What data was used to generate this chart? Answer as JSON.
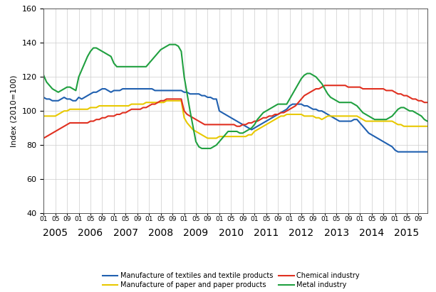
{
  "title": "",
  "ylabel": "Index (2010=100)",
  "ylim": [
    40,
    160
  ],
  "yticks": [
    40,
    60,
    80,
    100,
    120,
    140,
    160
  ],
  "background_color": "#ffffff",
  "grid_color": "#cccccc",
  "line_width": 1.5,
  "colors": {
    "textiles": "#2060b0",
    "paper": "#e8c800",
    "chemical": "#e03020",
    "metal": "#20a040"
  },
  "legend_labels": {
    "textiles": "Manufacture of textiles and textile products",
    "paper": "Manufacture of paper and paper products",
    "chemical": "Chemical industry",
    "metal": "Metal industry"
  },
  "start_year": 2005,
  "start_month": 1,
  "n_months": 132,
  "textiles": [
    108,
    107,
    107,
    106,
    106,
    106,
    107,
    108,
    107,
    107,
    106,
    106,
    108,
    107,
    108,
    109,
    110,
    111,
    111,
    112,
    113,
    113,
    112,
    111,
    112,
    112,
    112,
    113,
    113,
    113,
    113,
    113,
    113,
    113,
    113,
    113,
    113,
    113,
    112,
    112,
    112,
    112,
    112,
    112,
    112,
    112,
    112,
    112,
    111,
    111,
    110,
    110,
    110,
    110,
    109,
    109,
    108,
    108,
    107,
    107,
    100,
    99,
    98,
    97,
    96,
    95,
    94,
    93,
    92,
    91,
    90,
    89,
    90,
    91,
    92,
    93,
    94,
    95,
    96,
    97,
    98,
    99,
    100,
    101,
    103,
    104,
    104,
    104,
    104,
    103,
    103,
    102,
    101,
    101,
    100,
    100,
    99,
    98,
    97,
    96,
    95,
    94,
    94,
    94,
    94,
    94,
    95,
    95,
    93,
    91,
    89,
    87,
    86,
    85,
    84,
    83,
    82,
    81,
    80,
    79,
    77,
    76,
    76,
    76,
    76,
    76,
    76,
    76,
    76,
    76,
    76,
    76
  ],
  "paper": [
    97,
    97,
    97,
    97,
    97,
    98,
    99,
    100,
    100,
    101,
    101,
    101,
    101,
    101,
    101,
    101,
    102,
    102,
    102,
    103,
    103,
    103,
    103,
    103,
    103,
    103,
    103,
    103,
    103,
    103,
    104,
    104,
    104,
    104,
    104,
    105,
    105,
    105,
    105,
    105,
    105,
    105,
    106,
    106,
    106,
    106,
    106,
    106,
    96,
    93,
    91,
    89,
    88,
    87,
    86,
    85,
    84,
    84,
    84,
    84,
    85,
    85,
    85,
    85,
    85,
    85,
    85,
    85,
    85,
    85,
    86,
    86,
    88,
    89,
    90,
    91,
    92,
    93,
    94,
    95,
    96,
    97,
    97,
    98,
    98,
    98,
    98,
    98,
    98,
    97,
    97,
    97,
    97,
    96,
    96,
    95,
    96,
    97,
    97,
    97,
    97,
    97,
    97,
    97,
    97,
    97,
    97,
    97,
    96,
    95,
    94,
    94,
    94,
    94,
    94,
    94,
    94,
    94,
    94,
    94,
    93,
    92,
    92,
    91,
    91,
    91,
    91,
    91,
    91,
    91,
    91,
    91
  ],
  "chemical": [
    84,
    85,
    86,
    87,
    88,
    89,
    90,
    91,
    92,
    93,
    93,
    93,
    93,
    93,
    93,
    93,
    94,
    94,
    95,
    95,
    96,
    96,
    97,
    97,
    97,
    98,
    98,
    99,
    99,
    100,
    101,
    101,
    101,
    101,
    102,
    102,
    103,
    104,
    104,
    105,
    106,
    106,
    107,
    107,
    107,
    107,
    107,
    107,
    100,
    98,
    97,
    96,
    95,
    94,
    93,
    92,
    92,
    92,
    92,
    92,
    92,
    92,
    92,
    92,
    92,
    92,
    91,
    91,
    92,
    92,
    93,
    93,
    94,
    94,
    95,
    96,
    96,
    97,
    97,
    98,
    98,
    99,
    99,
    100,
    101,
    102,
    103,
    105,
    107,
    109,
    110,
    111,
    112,
    113,
    113,
    114,
    115,
    115,
    115,
    115,
    115,
    115,
    115,
    115,
    114,
    114,
    114,
    114,
    114,
    113,
    113,
    113,
    113,
    113,
    113,
    113,
    113,
    112,
    112,
    112,
    111,
    110,
    110,
    109,
    109,
    108,
    107,
    107,
    106,
    106,
    105,
    105
  ],
  "metal": [
    121,
    117,
    115,
    113,
    112,
    111,
    112,
    113,
    114,
    114,
    113,
    112,
    120,
    124,
    128,
    132,
    135,
    137,
    137,
    136,
    135,
    134,
    133,
    132,
    128,
    126,
    126,
    126,
    126,
    126,
    126,
    126,
    126,
    126,
    126,
    126,
    128,
    130,
    132,
    134,
    136,
    137,
    138,
    139,
    139,
    139,
    138,
    135,
    120,
    110,
    100,
    91,
    82,
    79,
    78,
    78,
    78,
    78,
    79,
    80,
    82,
    84,
    86,
    88,
    88,
    88,
    88,
    87,
    87,
    88,
    89,
    90,
    92,
    95,
    97,
    99,
    100,
    101,
    102,
    103,
    104,
    104,
    104,
    104,
    107,
    110,
    113,
    116,
    119,
    121,
    122,
    122,
    121,
    120,
    118,
    116,
    113,
    110,
    108,
    107,
    106,
    105,
    105,
    105,
    105,
    105,
    104,
    103,
    101,
    99,
    98,
    97,
    96,
    95,
    95,
    95,
    95,
    95,
    96,
    97,
    99,
    101,
    102,
    102,
    101,
    100,
    100,
    99,
    98,
    97,
    95,
    94
  ]
}
